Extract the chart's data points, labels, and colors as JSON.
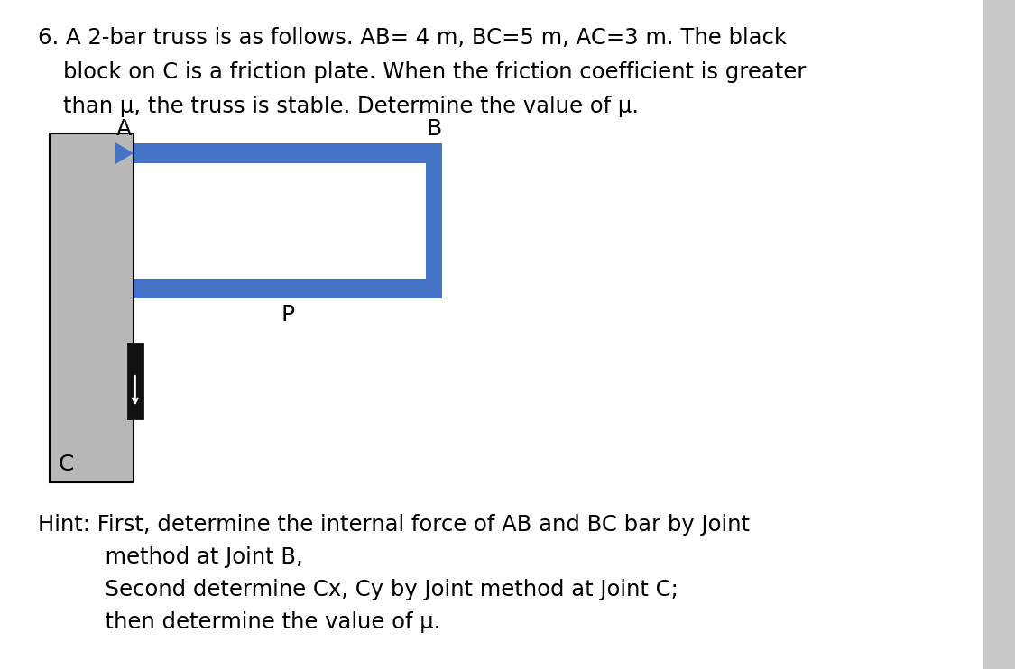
{
  "title_line1": "6. A 2-bar truss is as follows. AB= 4 m, BC−5 m, AC−3 m. The black",
  "title_line1_plain": "6. A 2-bar truss is as follows. AB= 4 m, BC=5 m, AC=3 m. The black",
  "title_line2": "   block on C is a friction plate. When the friction coefficient is greater",
  "title_line3": "   than μ, the truss is stable. Determine the value of μ.",
  "hint_line1": "Hint: First, determine the internal force of AB and BC bar by Joint",
  "hint_line2": "      method at Joint B,",
  "hint_line3": "      Second determine Cx, Cy by Joint method at Joint C;",
  "hint_line4": "      then determine the value of μ.",
  "bar_color": "#4472c4",
  "wall_color": "#b8b8b8",
  "wall_edge_color": "#000000",
  "friction_color": "#111111",
  "text_color": "#000000",
  "bg_color": "#ffffff",
  "right_bar_color": "#c8c8c8",
  "label_A": "A",
  "label_B": "B",
  "label_C": "C",
  "label_P": "P"
}
